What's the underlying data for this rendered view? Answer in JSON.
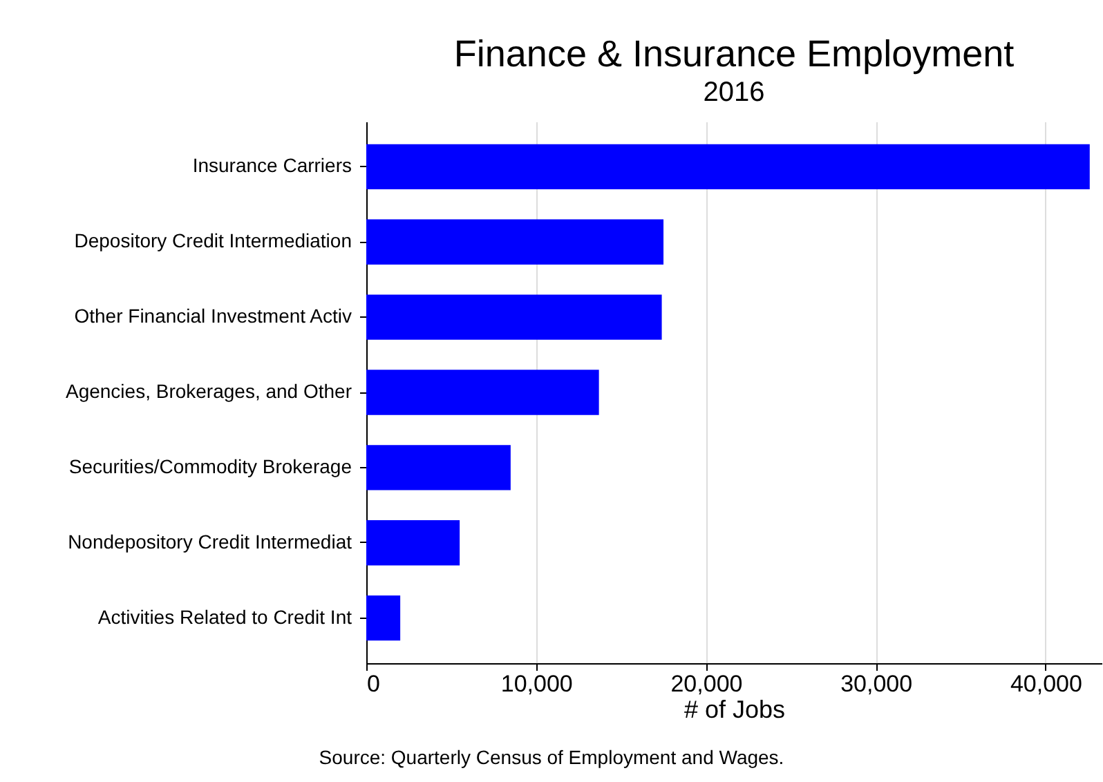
{
  "chart_data": {
    "type": "bar",
    "orientation": "horizontal",
    "title": "Finance & Insurance Employment",
    "subtitle": "2016",
    "xlabel": "# of Jobs",
    "categories": [
      "Insurance Carriers",
      "Depository Credit Intermediation",
      "Other Financial Investment Activ",
      "Agencies, Brokerages, and Other",
      "Securities/Commodity Brokerage",
      "Nondepository Credit Intermediat",
      "Activities Related to Credit Int"
    ],
    "values": [
      42600,
      17500,
      17400,
      13700,
      8500,
      5500,
      2000
    ],
    "color": "#0000ff",
    "xlim": [
      0,
      43300
    ],
    "xticks": [
      0,
      {
        "value": 10000,
        "label": "10,000"
      },
      {
        "value": 20000,
        "label": "20,000"
      },
      {
        "value": 30000,
        "label": "30,000"
      },
      {
        "value": 40000,
        "label": "40,000"
      }
    ],
    "grid": "x",
    "annotations": [
      "Source: Quarterly Census of Employment and Wages."
    ]
  }
}
